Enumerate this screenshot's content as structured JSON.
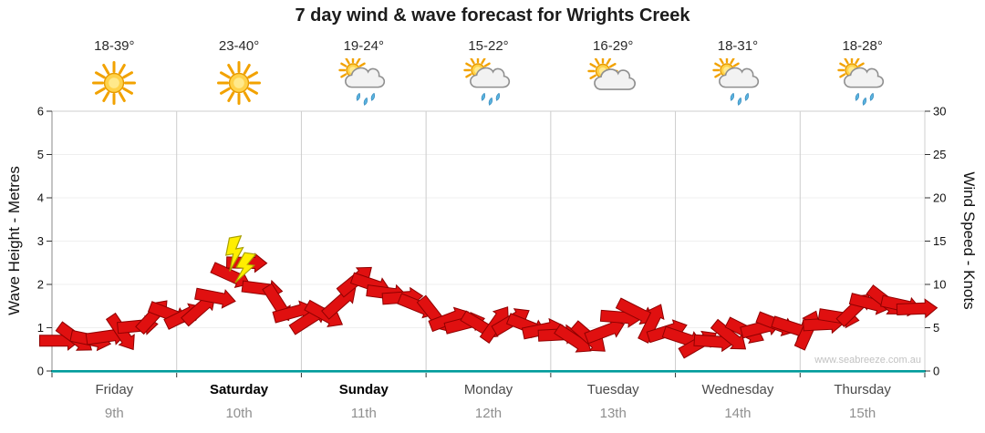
{
  "chart_data": {
    "type": "area",
    "variant": "wind-arrow-band",
    "title": "7 day wind & wave forecast for Wrights Creek",
    "watermark": "www.seabreeze.com.au",
    "left_axis": {
      "label": "Wave Height - Metres",
      "min": 0,
      "max": 6,
      "ticks": [
        0,
        1,
        2,
        3,
        4,
        5,
        6
      ]
    },
    "right_axis": {
      "label": "Wind Speed - Knots",
      "min": 0,
      "max": 30,
      "ticks": [
        0,
        5,
        10,
        15,
        20,
        25,
        30
      ]
    },
    "grid": "vertical-day-separators",
    "legend": "none",
    "days": [
      {
        "name": "Friday",
        "date": "9th",
        "temps": "18-39°",
        "icon": "sunny",
        "weekend": false
      },
      {
        "name": "Saturday",
        "date": "10th",
        "temps": "23-40°",
        "icon": "sunny",
        "weekend": true
      },
      {
        "name": "Sunday",
        "date": "11th",
        "temps": "19-24°",
        "icon": "sun-rain",
        "weekend": true
      },
      {
        "name": "Monday",
        "date": "12th",
        "temps": "15-22°",
        "icon": "sun-rain",
        "weekend": false
      },
      {
        "name": "Tuesday",
        "date": "13th",
        "temps": "16-29°",
        "icon": "sun-cloud",
        "weekend": false
      },
      {
        "name": "Wednesday",
        "date": "14th",
        "temps": "18-31°",
        "icon": "sun-rain",
        "weekend": false
      },
      {
        "name": "Thursday",
        "date": "15th",
        "temps": "18-28°",
        "icon": "sun-rain",
        "weekend": false
      }
    ],
    "points_per_day": 8,
    "wind_speed_knots": [
      3.5,
      3.8,
      3.6,
      4.0,
      4.4,
      5.2,
      6.4,
      6.6,
      6.4,
      7.2,
      8.5,
      11.0,
      12.5,
      9.5,
      7.8,
      6.8,
      6.0,
      6.5,
      8.0,
      10.5,
      10.0,
      9.0,
      8.5,
      7.5,
      6.5,
      6.0,
      5.5,
      5.2,
      5.5,
      5.8,
      5.2,
      4.8,
      4.2,
      3.6,
      3.8,
      4.6,
      6.2,
      6.8,
      5.6,
      4.6,
      3.8,
      3.2,
      3.4,
      4.0,
      4.6,
      5.0,
      5.4,
      5.0,
      4.8,
      5.4,
      6.2,
      7.2,
      7.8,
      8.0,
      7.6,
      7.2
    ],
    "storm_marker": {
      "day": "Saturday",
      "knots": 12.5,
      "symbol": "lightning"
    },
    "colors": {
      "series": "#e01010",
      "series_outline": "#8f0000",
      "baseline": "#009b9b",
      "lightning": "#ffee00",
      "gridline": "#cccccc"
    }
  }
}
